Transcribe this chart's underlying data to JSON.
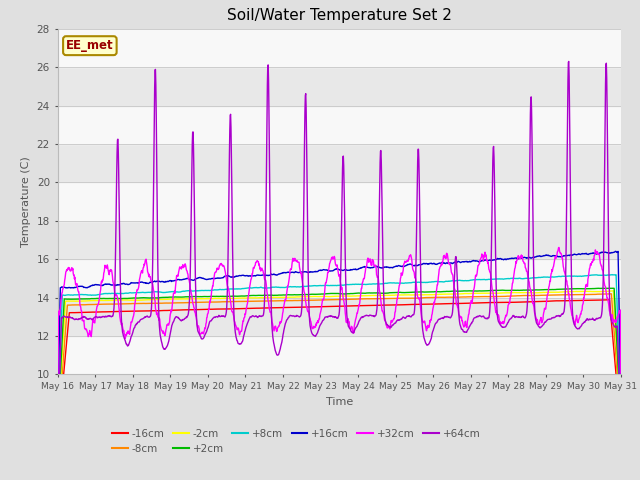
{
  "title": "Soil/Water Temperature Set 2",
  "xlabel": "Time",
  "ylabel": "Temperature (C)",
  "ylim": [
    10,
    28
  ],
  "xlim": [
    0,
    15
  ],
  "annotation": "EE_met",
  "fig_facecolor": "#e0e0e0",
  "plot_facecolor": "#f0f0f0",
  "series": {
    "-16cm": {
      "color": "#ff0000"
    },
    "-8cm": {
      "color": "#ff8800"
    },
    "-2cm": {
      "color": "#ffff00"
    },
    "+2cm": {
      "color": "#00bb00"
    },
    "+8cm": {
      "color": "#00cccc"
    },
    "+16cm": {
      "color": "#0000cc"
    },
    "+32cm": {
      "color": "#ff00ff"
    },
    "+64cm": {
      "color": "#aa00cc"
    }
  },
  "xtick_labels": [
    "May 16",
    "May 17",
    "May 18",
    "May 19",
    "May 20",
    "May 21",
    "May 22",
    "May 23",
    "May 24",
    "May 25",
    "May 26",
    "May 27",
    "May 28",
    "May 29",
    "May 30",
    "May 31"
  ],
  "yticks": [
    10,
    12,
    14,
    16,
    18,
    20,
    22,
    24,
    26,
    28
  ],
  "band_colors": [
    "#f8f8f8",
    "#e8e8e8"
  ],
  "grid_color": "#cccccc",
  "tick_color": "#555555",
  "label_color": "#555555"
}
